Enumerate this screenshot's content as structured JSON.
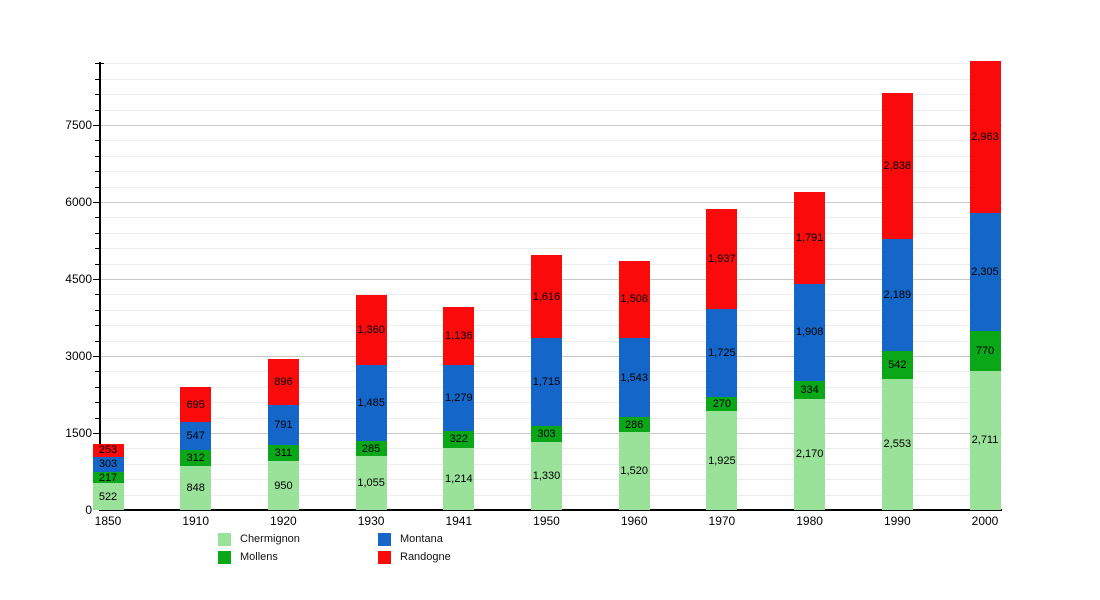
{
  "chart_data": {
    "type": "bar",
    "stacked": true,
    "title": "",
    "xlabel": "",
    "ylabel": "",
    "categories": [
      "1850",
      "1910",
      "1920",
      "1930",
      "1941",
      "1950",
      "1960",
      "1970",
      "1980",
      "1990",
      "2000"
    ],
    "series": [
      {
        "name": "Chermignon",
        "color": "#9ae19a",
        "values": [
          522,
          848,
          950,
          1055,
          1214,
          1330,
          1520,
          1925,
          2170,
          2553,
          2711
        ]
      },
      {
        "name": "Mollens",
        "color": "#0aa819",
        "values": [
          217,
          312,
          311,
          285,
          322,
          303,
          286,
          270,
          334,
          542,
          770
        ]
      },
      {
        "name": "Montana",
        "color": "#1467c8",
        "values": [
          303,
          547,
          791,
          1485,
          1279,
          1715,
          1543,
          1725,
          1908,
          2189,
          2305
        ]
      },
      {
        "name": "Randogne",
        "color": "#fa0a0a",
        "values": [
          253,
          695,
          896,
          1360,
          1136,
          1616,
          1508,
          1937,
          1791,
          2838,
          2963
        ]
      }
    ],
    "ylim": [
      0,
      8700
    ],
    "y_major_step": 1500,
    "y_minor_step": 300,
    "y_tick_labels": [
      "0",
      "1500",
      "3000",
      "4500",
      "6000",
      "7500"
    ],
    "grid": true,
    "legend_position": "bottom",
    "legend_columns": [
      [
        "Chermignon",
        "Mollens"
      ],
      [
        "Montana",
        "Randogne"
      ]
    ]
  }
}
